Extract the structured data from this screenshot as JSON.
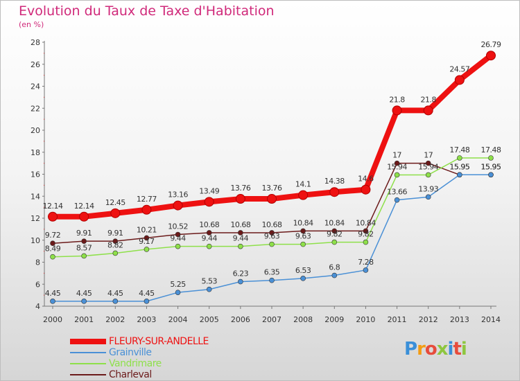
{
  "title": "Evolution du Taux de Taxe d'Habitation",
  "subtitle": "(en %)",
  "logo_text": "Proxiti",
  "chart_data": {
    "type": "line",
    "title": "Evolution du Taux de Taxe d'Habitation",
    "ylabel": "(en %)",
    "xlabel": "",
    "x": [
      "2000",
      "2001",
      "2002",
      "2003",
      "2004",
      "2005",
      "2006",
      "2007",
      "2008",
      "2009",
      "2010",
      "2011",
      "2012",
      "2013",
      "2014"
    ],
    "ylim": [
      4,
      28
    ],
    "yticks": [
      4,
      6,
      8,
      10,
      12,
      14,
      16,
      18,
      20,
      22,
      24,
      26,
      28
    ],
    "grid": false,
    "legend_position": "bottom-left",
    "series": [
      {
        "name": "FLEURY-SUR-ANDELLE",
        "color": "#ee1111",
        "values": [
          12.14,
          12.14,
          12.45,
          12.77,
          13.16,
          13.49,
          13.76,
          13.76,
          14.1,
          14.38,
          14.6,
          21.8,
          21.8,
          24.57,
          26.79
        ]
      },
      {
        "name": "Grainville",
        "color": "#4a90d6",
        "values": [
          4.45,
          4.45,
          4.45,
          4.45,
          5.25,
          5.53,
          6.23,
          6.35,
          6.53,
          6.8,
          7.28,
          13.66,
          13.93,
          15.95,
          15.95
        ]
      },
      {
        "name": "Vandrimare",
        "color": "#8ee04a",
        "values": [
          8.49,
          8.57,
          8.82,
          9.17,
          9.44,
          9.44,
          9.44,
          9.63,
          9.63,
          9.82,
          9.82,
          15.94,
          15.94,
          17.48,
          17.48
        ]
      },
      {
        "name": "Charleval",
        "color": "#6b1a1a",
        "values": [
          9.72,
          9.91,
          9.91,
          10.21,
          10.52,
          10.68,
          10.68,
          10.68,
          10.84,
          10.84,
          10.84,
          17,
          17,
          15.95,
          15.95
        ]
      }
    ],
    "data_labels": [
      [
        "12.14",
        "12.14",
        "12.45",
        "12.77",
        "13.16",
        "13.49",
        "13.76",
        "13.76",
        "14.1",
        "14.38",
        "14.6",
        "21.8",
        "21.8",
        "24.57",
        "26.79"
      ],
      [
        "4.45",
        "4.45",
        "4.45",
        "4.45",
        "5.25",
        "5.53",
        "6.23",
        "6.35",
        "6.53",
        "6.8",
        "7.28",
        "13.66",
        "13.93",
        "15.95",
        "15.95"
      ],
      [
        "8.49",
        "8.57",
        "8.82",
        "9.17",
        "9.44",
        "9.44",
        "9.44",
        "9.63",
        "9.63",
        "9.82",
        "9.82",
        "15.94",
        "15.94",
        "17.48",
        "17.48"
      ],
      [
        "9.72",
        "9.91",
        "9.91",
        "10.21",
        "10.52",
        "10.68",
        "10.68",
        "10.68",
        "10.84",
        "10.84",
        "10.84",
        "17",
        "17",
        "15.95",
        "15.95"
      ]
    ]
  }
}
